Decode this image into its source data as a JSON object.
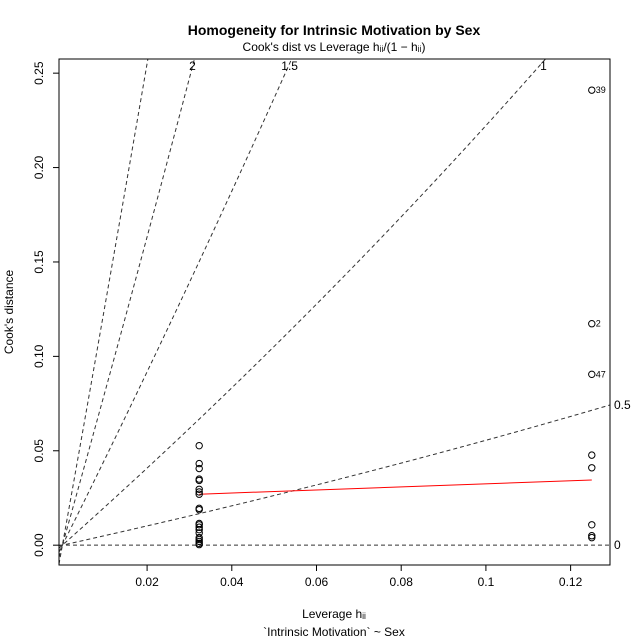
{
  "chart_data": {
    "type": "scatter",
    "title": "Homogeneity for Intrinsic Motivation by Sex",
    "subtitle": "Cook's dist vs Leverage  hᵢᵢ/(1 − hᵢᵢ)",
    "xlabel": "Leverage  hᵢᵢ",
    "ylabel": "Cook's distance",
    "caption": "`Intrinsic Motivation` ~ Sex",
    "xlim": [
      -0.0008,
      0.1293
    ],
    "ylim": [
      -0.0105,
      0.2575
    ],
    "x_ticks": [
      {
        "value": 0.02,
        "label": "0.02"
      },
      {
        "value": 0.04,
        "label": "0.04"
      },
      {
        "value": 0.06,
        "label": "0.06"
      },
      {
        "value": 0.08,
        "label": "0.08"
      },
      {
        "value": 0.1,
        "label": "0.1"
      },
      {
        "value": 0.12,
        "label": "0.12"
      }
    ],
    "y_ticks": [
      {
        "value": 0.0,
        "label": "0.00"
      },
      {
        "value": 0.05,
        "label": "0.05"
      },
      {
        "value": 0.1,
        "label": "0.10"
      },
      {
        "value": 0.15,
        "label": "0.15"
      },
      {
        "value": 0.2,
        "label": "0.20"
      },
      {
        "value": 0.25,
        "label": "0.25"
      }
    ],
    "points": [
      {
        "x": 0.0323,
        "y": 0.0527
      },
      {
        "x": 0.0323,
        "y": 0.0432
      },
      {
        "x": 0.0323,
        "y": 0.0406
      },
      {
        "x": 0.0323,
        "y": 0.035
      },
      {
        "x": 0.0323,
        "y": 0.0343
      },
      {
        "x": 0.0323,
        "y": 0.0296
      },
      {
        "x": 0.0323,
        "y": 0.0282
      },
      {
        "x": 0.0323,
        "y": 0.027
      },
      {
        "x": 0.0323,
        "y": 0.0195
      },
      {
        "x": 0.0323,
        "y": 0.0188
      },
      {
        "x": 0.0323,
        "y": 0.0115
      },
      {
        "x": 0.0323,
        "y": 0.0108
      },
      {
        "x": 0.0323,
        "y": 0.0095
      },
      {
        "x": 0.0323,
        "y": 0.0082
      },
      {
        "x": 0.0323,
        "y": 0.0065
      },
      {
        "x": 0.0323,
        "y": 0.004
      },
      {
        "x": 0.0323,
        "y": 0.003
      },
      {
        "x": 0.0323,
        "y": 0.002
      },
      {
        "x": 0.0323,
        "y": 0.001
      },
      {
        "x": 0.0323,
        "y": 0.0003
      },
      {
        "x": 0.125,
        "y": 0.241,
        "label": "39"
      },
      {
        "x": 0.125,
        "y": 0.1173,
        "label": "2"
      },
      {
        "x": 0.125,
        "y": 0.0905,
        "label": "47"
      },
      {
        "x": 0.125,
        "y": 0.0477
      },
      {
        "x": 0.125,
        "y": 0.041
      },
      {
        "x": 0.125,
        "y": 0.0108
      },
      {
        "x": 0.125,
        "y": 0.005
      },
      {
        "x": 0.125,
        "y": 0.004
      }
    ],
    "smooth_line": {
      "color": "#ff0000",
      "points": [
        {
          "x": 0.0323,
          "y": 0.027
        },
        {
          "x": 0.125,
          "y": 0.0345
        }
      ]
    },
    "contours": [
      {
        "value": 0.5,
        "label": "0.5"
      },
      {
        "value": 1,
        "label": "1"
      },
      {
        "value": 1.5,
        "label": "1.5"
      },
      {
        "value": 2,
        "label": "2"
      },
      {
        "value": 2.5
      },
      {
        "value": 0,
        "label": "0"
      }
    ],
    "grid": false,
    "legend": "none"
  }
}
